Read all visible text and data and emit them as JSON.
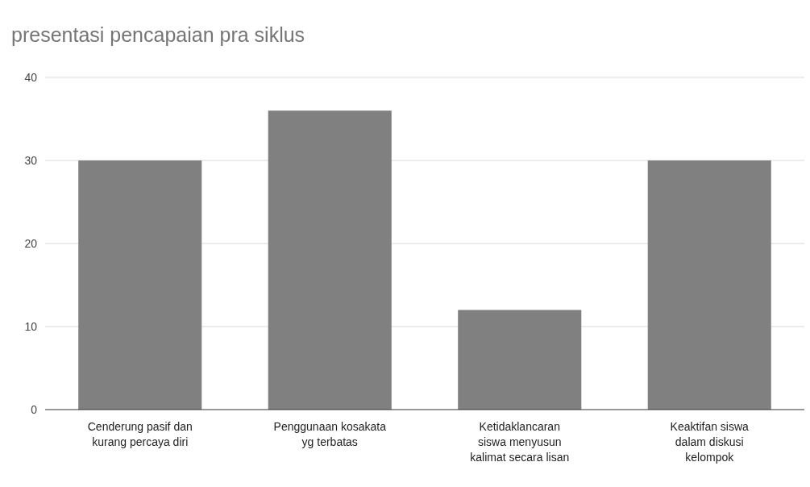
{
  "chart_data": {
    "type": "bar",
    "title": "presentasi pencapaian pra siklus",
    "categories": [
      "Cenderung pasif dan kurang percaya diri",
      "Penggunaan kosakata yg terbatas",
      "Ketidaklancaran siswa menyusun kalimat secara lisan",
      "Keaktifan siswa dalam diskusi kelompok"
    ],
    "values": [
      30,
      36,
      12,
      30
    ],
    "color": "#808080",
    "ylim": [
      0,
      40
    ],
    "yticks": [
      0,
      10,
      20,
      30,
      40
    ],
    "grid": "y"
  }
}
